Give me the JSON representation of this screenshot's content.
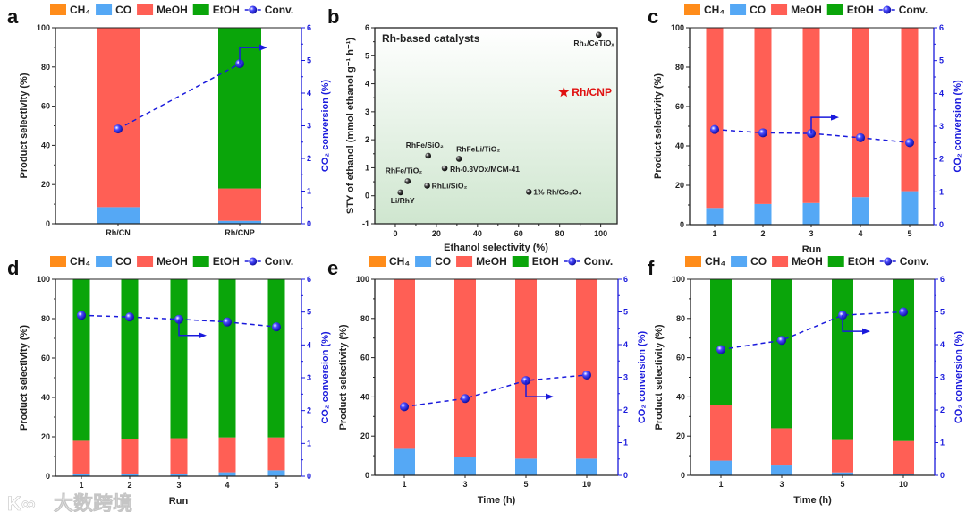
{
  "legend": {
    "CH4": "CH₄",
    "CO": "CO",
    "MeOH": "MeOH",
    "EtOH": "EtOH",
    "Conv": "Conv."
  },
  "colors": {
    "CH4": "#ff8c1a",
    "CO": "#55a8f5",
    "MeOH": "#ff5f55",
    "EtOH": "#0aa50a",
    "Conv": "#1a1adc",
    "star": "#e01010"
  },
  "watermark": "大数跨境",
  "chart_data": [
    {
      "panel": "a",
      "type": "bar",
      "stacked": true,
      "categories": [
        "Rh/CN",
        "Rh/CNP"
      ],
      "xlabel": "",
      "ylabel": "Product selectivity (%)",
      "y2label": "CO₂ conversion (%)",
      "ylim": [
        0,
        100
      ],
      "y2lim": [
        0,
        6
      ],
      "yticks": [
        "0",
        "20",
        "40",
        "60",
        "80",
        "100"
      ],
      "y2ticks": [
        "0",
        "1",
        "2",
        "3",
        "4",
        "5",
        "6"
      ],
      "series": {
        "CH4": [
          0,
          0
        ],
        "CO": [
          8.5,
          1.5
        ],
        "MeOH": [
          91.5,
          16.5
        ],
        "EtOH": [
          0,
          82
        ]
      },
      "conversion": [
        2.9,
        4.9
      ],
      "arrow": {
        "index": 1,
        "dir": "up"
      }
    },
    {
      "panel": "b",
      "type": "scatter",
      "title": "Rh-based catalysts",
      "xlabel": "Ethanol selectivity (%)",
      "ylabel": "STY of ethanol (mmol ethanol g⁻¹ h⁻¹)",
      "xlim": [
        -10,
        108
      ],
      "ylim": [
        -1,
        6
      ],
      "xticks": [
        "0",
        "20",
        "40",
        "60",
        "80",
        "100"
      ],
      "yticks": [
        "-1",
        "0",
        "1",
        "2",
        "3",
        "4",
        "5",
        "6"
      ],
      "points": [
        {
          "label": "Rh₁/CeTiOₓ",
          "x": 99,
          "y": 5.75,
          "marker": "dot"
        },
        {
          "label": "Rh/CNP",
          "x": 82,
          "y": 3.7,
          "marker": "star"
        },
        {
          "label": "RhFe/SiO₂",
          "x": 16,
          "y": 1.43,
          "marker": "dot"
        },
        {
          "label": "RhFeLi/TiO₂",
          "x": 31,
          "y": 1.32,
          "marker": "dot"
        },
        {
          "label": "Rh-0.3VOx/MCM-41",
          "x": 24,
          "y": 0.98,
          "marker": "dot"
        },
        {
          "label": "RhFe/TiO₂",
          "x": 6,
          "y": 0.52,
          "marker": "dot"
        },
        {
          "label": "RhLi/SiO₂",
          "x": 15.5,
          "y": 0.36,
          "marker": "dot"
        },
        {
          "label": "Li/RhY",
          "x": 2.5,
          "y": 0.12,
          "marker": "dot"
        },
        {
          "label": "1% Rh/Co₃O₄",
          "x": 65,
          "y": 0.14,
          "marker": "dot"
        }
      ]
    },
    {
      "panel": "c",
      "type": "bar",
      "stacked": true,
      "categories": [
        "1",
        "2",
        "3",
        "4",
        "5"
      ],
      "xlabel": "Run",
      "ylabel": "Product selectivity (%)",
      "y2label": "CO₂ conversion (%)",
      "ylim": [
        0,
        100
      ],
      "y2lim": [
        0,
        6
      ],
      "yticks": [
        "0",
        "20",
        "40",
        "60",
        "80",
        "100"
      ],
      "y2ticks": [
        "0",
        "1",
        "2",
        "3",
        "4",
        "5",
        "6"
      ],
      "series": {
        "CH4": [
          0,
          0,
          0,
          0,
          0
        ],
        "CO": [
          8.5,
          10.5,
          11,
          14,
          17
        ],
        "MeOH": [
          91.5,
          89.5,
          89,
          86,
          83
        ],
        "EtOH": [
          0,
          0,
          0,
          0,
          0
        ]
      },
      "conversion": [
        2.9,
        2.8,
        2.78,
        2.65,
        2.5
      ],
      "arrow": {
        "index": 2,
        "dir": "up"
      }
    },
    {
      "panel": "d",
      "type": "bar",
      "stacked": true,
      "categories": [
        "1",
        "2",
        "3",
        "4",
        "5"
      ],
      "xlabel": "Run",
      "ylabel": "Product selectivity (%)",
      "y2label": "CO₂ conversion (%)",
      "ylim": [
        0,
        100
      ],
      "y2lim": [
        0,
        6
      ],
      "yticks": [
        "0",
        "20",
        "40",
        "60",
        "80",
        "100"
      ],
      "y2ticks": [
        "0",
        "1",
        "2",
        "3",
        "4",
        "5",
        "6"
      ],
      "series": {
        "CH4": [
          0,
          0,
          0,
          0,
          0
        ],
        "CO": [
          1.2,
          1,
          1.3,
          2,
          3
        ],
        "MeOH": [
          16.8,
          18,
          18,
          17.7,
          16.7
        ],
        "EtOH": [
          82,
          81,
          80.7,
          80.3,
          80.3
        ]
      },
      "conversion": [
        4.9,
        4.85,
        4.78,
        4.7,
        4.55
      ],
      "arrow": {
        "index": 2,
        "dir": "down"
      }
    },
    {
      "panel": "e",
      "type": "bar",
      "stacked": true,
      "categories": [
        "1",
        "3",
        "5",
        "10"
      ],
      "xlabel": "Time (h)",
      "ylabel": "Product selectivity (%)",
      "y2label": "CO₂ conversion (%)",
      "ylim": [
        0,
        100
      ],
      "y2lim": [
        0,
        6
      ],
      "yticks": [
        "0",
        "20",
        "40",
        "60",
        "80",
        "100"
      ],
      "y2ticks": [
        "0",
        "1",
        "2",
        "3",
        "4",
        "5",
        "6"
      ],
      "series": {
        "CH4": [
          0,
          0,
          0,
          0
        ],
        "CO": [
          13.5,
          9.5,
          8.5,
          8.5
        ],
        "MeOH": [
          86.5,
          90.5,
          91.5,
          91.5
        ],
        "EtOH": [
          0,
          0,
          0,
          0
        ]
      },
      "conversion": [
        2.1,
        2.35,
        2.9,
        3.07
      ],
      "arrow": {
        "index": 2,
        "dir": "down"
      }
    },
    {
      "panel": "f",
      "type": "bar",
      "stacked": true,
      "categories": [
        "1",
        "3",
        "5",
        "10"
      ],
      "xlabel": "Time (h)",
      "ylabel": "Product selectivity (%)",
      "y2label": "CO₂ conversion (%)",
      "ylim": [
        0,
        100
      ],
      "y2lim": [
        0,
        6
      ],
      "yticks": [
        "0",
        "20",
        "40",
        "60",
        "80",
        "100"
      ],
      "y2ticks": [
        "0",
        "1",
        "2",
        "3",
        "4",
        "5",
        "6"
      ],
      "series": {
        "CH4": [
          0,
          0,
          0,
          0
        ],
        "CO": [
          7.5,
          5,
          1.5,
          0.5
        ],
        "MeOH": [
          28.5,
          19,
          16.5,
          17
        ],
        "EtOH": [
          64,
          76,
          82,
          82.5
        ]
      },
      "conversion": [
        3.85,
        4.13,
        4.9,
        5.0
      ],
      "arrow": {
        "index": 2,
        "dir": "down"
      }
    }
  ]
}
